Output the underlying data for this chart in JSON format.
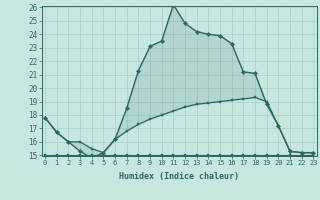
{
  "xlabel": "Humidex (Indice chaleur)",
  "x": [
    0,
    1,
    2,
    3,
    4,
    5,
    6,
    7,
    8,
    9,
    10,
    11,
    12,
    13,
    14,
    15,
    16,
    17,
    18,
    19,
    20,
    21,
    22,
    23
  ],
  "humidex_main": [
    17.8,
    16.7,
    16.0,
    15.3,
    14.8,
    15.2,
    16.2,
    18.5,
    21.3,
    23.1,
    23.5,
    26.2,
    24.8,
    24.2,
    24.0,
    23.9,
    23.3,
    21.2,
    21.1,
    18.8,
    17.2,
    15.3,
    15.2,
    15.2
  ],
  "humidex_mid": [
    17.8,
    16.7,
    16.0,
    16.0,
    15.5,
    15.2,
    16.2,
    16.8,
    17.3,
    17.7,
    18.0,
    18.3,
    18.6,
    18.8,
    18.9,
    19.0,
    19.1,
    19.2,
    19.3,
    19.0,
    17.2,
    15.3,
    15.2,
    15.2
  ],
  "humidex_flat": [
    15.0,
    15.0,
    15.0,
    15.0,
    15.0,
    15.0,
    15.0,
    15.0,
    15.0,
    15.0,
    15.0,
    15.0,
    15.0,
    15.0,
    15.0,
    15.0,
    15.0,
    15.0,
    15.0,
    15.0,
    15.0,
    15.0,
    15.0,
    15.0
  ],
  "bg_color": "#c8e6e0",
  "grid_color": "#a8cfc8",
  "line_color": "#2a6868",
  "ylim": [
    15,
    26
  ],
  "xlim_min": 0,
  "xlim_max": 23,
  "yticks": [
    15,
    16,
    17,
    18,
    19,
    20,
    21,
    22,
    23,
    24,
    25,
    26
  ],
  "xticks": [
    0,
    1,
    2,
    3,
    4,
    5,
    6,
    7,
    8,
    9,
    10,
    11,
    12,
    13,
    14,
    15,
    16,
    17,
    18,
    19,
    20,
    21,
    22,
    23
  ]
}
